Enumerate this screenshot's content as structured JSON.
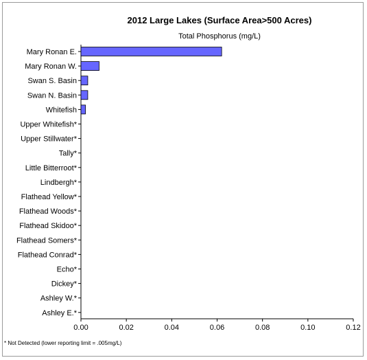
{
  "chart_data": {
    "type": "bar",
    "orientation": "horizontal",
    "title": "2012 Large Lakes (Surface Area>500 Acres)",
    "subtitle": "Total Phosphorus (mg/L)",
    "xlabel": "",
    "ylabel": "",
    "xlim": [
      0,
      0.12
    ],
    "x_ticks": [
      "0.00",
      "0.02",
      "0.04",
      "0.06",
      "0.08",
      "0.10",
      "0.12"
    ],
    "x_tick_values": [
      0,
      0.02,
      0.04,
      0.06,
      0.08,
      0.1,
      0.12
    ],
    "grid": false,
    "categories": [
      "Mary Ronan E.",
      "Mary Ronan W.",
      "Swan S. Basin",
      "Swan N. Basin",
      "Whitefish",
      "Upper Whitefish*",
      "Upper Stillwater*",
      "Tally*",
      "Little Bitterroot*",
      "Lindbergh*",
      "Flathead Yellow*",
      "Flathead Woods*",
      "Flathead Skidoo*",
      "Flathead Somers*",
      "Flathead Conrad*",
      "Echo*",
      "Dickey*",
      "Ashley W.*",
      "Ashley E.*"
    ],
    "values": [
      0.062,
      0.008,
      0.003,
      0.003,
      0.002,
      0,
      0,
      0,
      0,
      0,
      0,
      0,
      0,
      0,
      0,
      0,
      0,
      0,
      0
    ],
    "bar_color": "#6666ff",
    "footnote": "* Not Detected (lower reporting limit = .005mg/L)"
  }
}
